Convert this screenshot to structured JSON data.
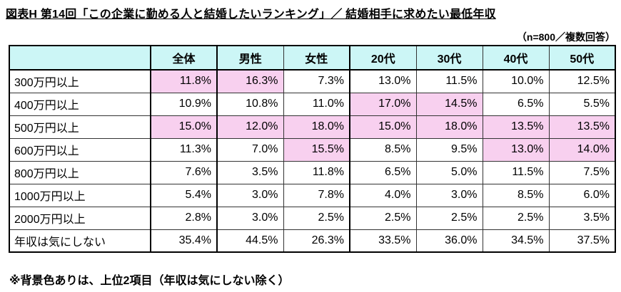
{
  "page": {
    "title": "図表H 第14回「この企業に勤める人と結婚したいランキング」／ 結婚相手に求めたい最低年収",
    "sample_note": "（n=800／複数回答）",
    "footnote": "※背景色ありは、上位2項目（年収は気にしない除く）"
  },
  "colors": {
    "header_bg": "#ccf6f6",
    "highlight_bg": "#f8d0ef"
  },
  "chart_data": {
    "type": "table",
    "title": "第14回「この企業に勤める人と結婚したいランキング」／ 結婚相手に求めたい最低年収",
    "sample_size": "n=800",
    "answer_type": "複数回答",
    "columns": [
      "",
      "全体",
      "男性",
      "女性",
      "20代",
      "30代",
      "40代",
      "50代"
    ],
    "highlight_rule": "背景色ありは、上位2項目（年収は気にしない除く）",
    "rows": [
      {
        "label": "300万円以上",
        "values": [
          "11.8%",
          "16.3%",
          "7.3%",
          "13.0%",
          "11.5%",
          "10.0%",
          "12.5%"
        ],
        "highlight": [
          true,
          true,
          false,
          false,
          false,
          false,
          false
        ]
      },
      {
        "label": "400万円以上",
        "values": [
          "10.9%",
          "10.8%",
          "11.0%",
          "17.0%",
          "14.5%",
          "6.5%",
          "5.5%"
        ],
        "highlight": [
          false,
          false,
          false,
          true,
          true,
          false,
          false
        ]
      },
      {
        "label": "500万円以上",
        "values": [
          "15.0%",
          "12.0%",
          "18.0%",
          "15.0%",
          "18.0%",
          "13.5%",
          "13.5%"
        ],
        "highlight": [
          true,
          true,
          true,
          true,
          true,
          true,
          true
        ]
      },
      {
        "label": "600万円以上",
        "values": [
          "11.3%",
          "7.0%",
          "15.5%",
          "8.5%",
          "9.5%",
          "13.0%",
          "14.0%"
        ],
        "highlight": [
          false,
          false,
          true,
          false,
          false,
          true,
          true
        ]
      },
      {
        "label": "800万円以上",
        "values": [
          "7.6%",
          "3.5%",
          "11.8%",
          "6.5%",
          "5.0%",
          "11.5%",
          "7.5%"
        ],
        "highlight": [
          false,
          false,
          false,
          false,
          false,
          false,
          false
        ]
      },
      {
        "label": "1000万円以上",
        "values": [
          "5.4%",
          "3.0%",
          "7.8%",
          "4.0%",
          "3.0%",
          "8.5%",
          "6.0%"
        ],
        "highlight": [
          false,
          false,
          false,
          false,
          false,
          false,
          false
        ]
      },
      {
        "label": "2000万円以上",
        "values": [
          "2.8%",
          "3.0%",
          "2.5%",
          "2.5%",
          "2.5%",
          "2.5%",
          "3.5%"
        ],
        "highlight": [
          false,
          false,
          false,
          false,
          false,
          false,
          false
        ]
      },
      {
        "label": "年収は気にしない",
        "values": [
          "35.4%",
          "44.5%",
          "26.3%",
          "33.5%",
          "36.0%",
          "34.5%",
          "37.5%"
        ],
        "highlight": [
          false,
          false,
          false,
          false,
          false,
          false,
          false
        ]
      }
    ]
  }
}
